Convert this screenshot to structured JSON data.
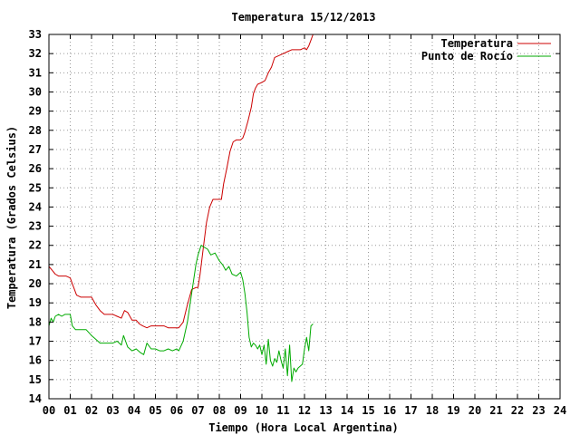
{
  "chart_data": {
    "type": "line",
    "title": "Temperatura 15/12/2013",
    "xlabel": "Tiempo (Hora Local Argentina)",
    "ylabel": "Temperatura (Grados Celsius)",
    "xlim": [
      0,
      24
    ],
    "ylim": [
      14,
      33
    ],
    "x_ticks": [
      "00",
      "01",
      "02",
      "03",
      "04",
      "05",
      "06",
      "07",
      "08",
      "09",
      "10",
      "11",
      "12",
      "13",
      "14",
      "15",
      "16",
      "17",
      "18",
      "19",
      "20",
      "21",
      "22",
      "23",
      "24"
    ],
    "y_ticks": [
      "14",
      "15",
      "16",
      "17",
      "18",
      "19",
      "20",
      "21",
      "22",
      "23",
      "24",
      "25",
      "26",
      "27",
      "28",
      "29",
      "30",
      "31",
      "32",
      "33"
    ],
    "grid": true,
    "legend_position": "top-right",
    "series": [
      {
        "name": "Temperatura",
        "color": "#cc0000",
        "x": [
          0.0,
          0.15,
          0.3,
          0.45,
          0.6,
          0.8,
          1.0,
          1.1,
          1.3,
          1.5,
          1.8,
          2.0,
          2.2,
          2.4,
          2.6,
          2.8,
          3.0,
          3.2,
          3.4,
          3.55,
          3.7,
          3.9,
          4.1,
          4.25,
          4.4,
          4.6,
          4.8,
          5.0,
          5.2,
          5.4,
          5.6,
          5.8,
          6.0,
          6.1,
          6.3,
          6.5,
          6.7,
          6.9,
          7.0,
          7.1,
          7.25,
          7.4,
          7.55,
          7.7,
          7.85,
          8.0,
          8.1,
          8.2,
          8.35,
          8.5,
          8.65,
          8.8,
          9.0,
          9.1,
          9.2,
          9.35,
          9.5,
          9.6,
          9.7,
          9.8,
          10.0,
          10.15,
          10.3,
          10.45,
          10.6,
          10.8,
          11.0,
          11.2,
          11.4,
          11.6,
          11.8,
          12.0,
          12.1,
          12.2,
          12.3,
          12.4
        ],
        "y": [
          20.9,
          20.7,
          20.5,
          20.4,
          20.4,
          20.4,
          20.3,
          20.0,
          19.4,
          19.3,
          19.3,
          19.3,
          18.9,
          18.6,
          18.4,
          18.4,
          18.4,
          18.3,
          18.2,
          18.6,
          18.5,
          18.1,
          18.1,
          17.9,
          17.8,
          17.7,
          17.8,
          17.8,
          17.8,
          17.8,
          17.7,
          17.7,
          17.7,
          17.7,
          18.0,
          18.9,
          19.7,
          19.8,
          19.8,
          20.5,
          21.9,
          23.2,
          24.0,
          24.4,
          24.4,
          24.4,
          24.4,
          25.2,
          26.0,
          26.9,
          27.4,
          27.5,
          27.5,
          27.6,
          27.9,
          28.5,
          29.2,
          29.9,
          30.2,
          30.4,
          30.5,
          30.6,
          31.0,
          31.3,
          31.8,
          31.9,
          32.0,
          32.1,
          32.2,
          32.2,
          32.2,
          32.3,
          32.2,
          32.4,
          32.7,
          33.0
        ]
      },
      {
        "name": "Punto de Rocío",
        "color": "#00aa00",
        "x": [
          0.0,
          0.1,
          0.2,
          0.3,
          0.45,
          0.6,
          0.75,
          0.9,
          1.0,
          1.1,
          1.25,
          1.5,
          1.75,
          2.0,
          2.2,
          2.4,
          2.6,
          2.8,
          3.0,
          3.2,
          3.4,
          3.5,
          3.7,
          3.9,
          4.1,
          4.3,
          4.45,
          4.6,
          4.8,
          5.0,
          5.2,
          5.4,
          5.6,
          5.8,
          6.0,
          6.1,
          6.3,
          6.5,
          6.7,
          6.9,
          7.0,
          7.15,
          7.3,
          7.45,
          7.6,
          7.8,
          8.0,
          8.15,
          8.3,
          8.45,
          8.6,
          8.8,
          9.0,
          9.1,
          9.2,
          9.3,
          9.4,
          9.5,
          9.6,
          9.7,
          9.8,
          9.9,
          10.0,
          10.1,
          10.2,
          10.3,
          10.4,
          10.5,
          10.6,
          10.7,
          10.8,
          10.9,
          11.0,
          11.1,
          11.2,
          11.3,
          11.4,
          11.5,
          11.6,
          11.7,
          11.8,
          11.9,
          12.0,
          12.1,
          12.2,
          12.3,
          12.4
        ],
        "y": [
          17.8,
          18.2,
          18.0,
          18.3,
          18.4,
          18.3,
          18.4,
          18.4,
          18.4,
          17.8,
          17.6,
          17.6,
          17.6,
          17.3,
          17.1,
          16.9,
          16.9,
          16.9,
          16.9,
          17.0,
          16.8,
          17.3,
          16.7,
          16.5,
          16.6,
          16.4,
          16.3,
          16.9,
          16.6,
          16.6,
          16.5,
          16.5,
          16.6,
          16.5,
          16.6,
          16.5,
          17.0,
          18.0,
          19.5,
          21.0,
          21.5,
          22.0,
          21.9,
          21.8,
          21.5,
          21.6,
          21.2,
          21.0,
          20.7,
          20.9,
          20.5,
          20.4,
          20.6,
          20.2,
          19.5,
          18.5,
          17.2,
          16.7,
          16.9,
          16.8,
          16.6,
          16.8,
          16.3,
          16.8,
          15.8,
          17.1,
          16.0,
          15.7,
          16.1,
          15.9,
          16.5,
          16.0,
          15.6,
          16.6,
          15.2,
          16.8,
          14.9,
          15.6,
          15.4,
          15.6,
          15.7,
          15.8,
          16.6,
          17.2,
          16.5,
          17.8,
          17.9
        ]
      }
    ]
  }
}
